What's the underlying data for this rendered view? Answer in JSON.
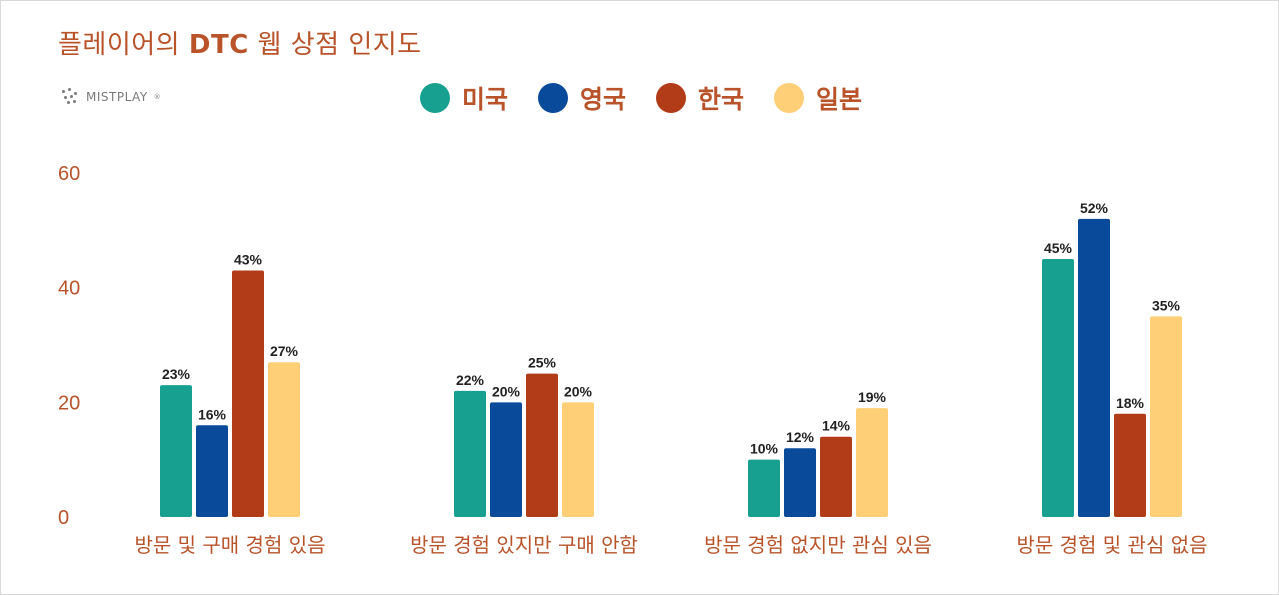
{
  "title": {
    "prefix": "플레이어의 ",
    "emphasis": "DTC",
    "suffix": " 웹 상점 인지도"
  },
  "logo": {
    "text": "MISTPLAY",
    "mark": "®"
  },
  "colors": {
    "미국": "#17a090",
    "영국": "#0a4a9a",
    "한국": "#b23b18",
    "일본": "#ffcf78",
    "text_accent": "#b8532a"
  },
  "chart_data": {
    "type": "bar",
    "categories": [
      "방문 및 구매 경험 있음",
      "방문 경험 있지만 구매 안함",
      "방문 경험 없지만 관심 있음",
      "방문 경험 및 관심 없음"
    ],
    "series": [
      {
        "name": "미국",
        "values": [
          23,
          22,
          10,
          45
        ],
        "labels": [
          "23%",
          "22%",
          "10%",
          "45%"
        ]
      },
      {
        "name": "영국",
        "values": [
          16,
          20,
          12,
          52
        ],
        "labels": [
          "16%",
          "20%",
          "12%",
          "52%"
        ]
      },
      {
        "name": "한국",
        "values": [
          43,
          25,
          14,
          18
        ],
        "labels": [
          "43%",
          "25%",
          "14%",
          "18%"
        ]
      },
      {
        "name": "일본",
        "values": [
          27,
          20,
          19,
          35
        ],
        "labels": [
          "27%",
          "20%",
          "19%",
          "35%"
        ]
      }
    ],
    "yticks": [
      "0",
      "20",
      "40",
      "60"
    ],
    "ylim": [
      0,
      60
    ],
    "grid": false,
    "legend_position": "top"
  }
}
